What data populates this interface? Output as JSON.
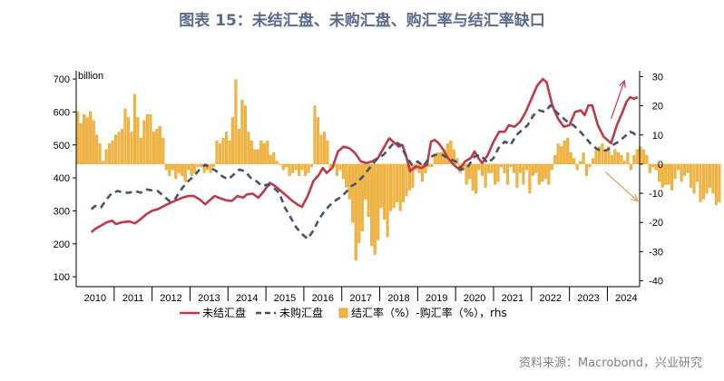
{
  "title": "图表 15：未结汇盘、未购汇盘、购汇率与结汇率缺口",
  "source": "资料来源：Macrobond，兴业研究",
  "colors": {
    "line1": "#c0394a",
    "line2": "#44546a",
    "bar": "#f2b441",
    "bar_edge": "#d99a1e",
    "arrow": "#c0394a",
    "arrow2": "#e69a4c"
  },
  "chart_data": {
    "type": "combo",
    "unit_label": "billion",
    "x_range": [
      2009.6,
      2024.45
    ],
    "x_ticks": [
      "2010",
      "2011",
      "2012",
      "2013",
      "2014",
      "2015",
      "2016",
      "2017",
      "2018",
      "2019",
      "2020",
      "2021",
      "2022",
      "2023",
      "2024"
    ],
    "y_left": {
      "range": [
        70,
        725
      ],
      "ticks": [
        100,
        200,
        300,
        400,
        500,
        600,
        700
      ]
    },
    "y_right": {
      "range": [
        -42,
        32
      ],
      "ticks": [
        -40,
        -30,
        -20,
        -10,
        0,
        10,
        20,
        30
      ]
    },
    "legend": [
      "未结汇盘",
      "未购汇盘",
      "结汇率（%）-购汇率（%），rhs"
    ],
    "series_lines": [
      {
        "name": "未结汇盘",
        "axis": "left",
        "style": "solid",
        "points": [
          [
            2010.0,
            235
          ],
          [
            2010.1,
            245
          ],
          [
            2010.25,
            255
          ],
          [
            2010.4,
            265
          ],
          [
            2010.55,
            270
          ],
          [
            2010.65,
            260
          ],
          [
            2010.8,
            265
          ],
          [
            2011.0,
            268
          ],
          [
            2011.15,
            262
          ],
          [
            2011.3,
            275
          ],
          [
            2011.45,
            290
          ],
          [
            2011.6,
            300
          ],
          [
            2011.75,
            305
          ],
          [
            2012.0,
            320
          ],
          [
            2012.2,
            330
          ],
          [
            2012.4,
            340
          ],
          [
            2012.55,
            345
          ],
          [
            2012.7,
            345
          ],
          [
            2012.85,
            335
          ],
          [
            2013.0,
            320
          ],
          [
            2013.1,
            330
          ],
          [
            2013.25,
            345
          ],
          [
            2013.4,
            338
          ],
          [
            2013.55,
            332
          ],
          [
            2013.7,
            330
          ],
          [
            2013.85,
            345
          ],
          [
            2014.0,
            340
          ],
          [
            2014.1,
            350
          ],
          [
            2014.25,
            352
          ],
          [
            2014.4,
            340
          ],
          [
            2014.55,
            360
          ],
          [
            2014.7,
            385
          ],
          [
            2014.85,
            375
          ],
          [
            2015.0,
            360
          ],
          [
            2015.15,
            345
          ],
          [
            2015.3,
            330
          ],
          [
            2015.45,
            318
          ],
          [
            2015.55,
            312
          ],
          [
            2015.7,
            345
          ],
          [
            2015.85,
            390
          ],
          [
            2016.0,
            410
          ],
          [
            2016.1,
            430
          ],
          [
            2016.2,
            415
          ],
          [
            2016.35,
            430
          ],
          [
            2016.5,
            480
          ],
          [
            2016.65,
            495
          ],
          [
            2016.8,
            490
          ],
          [
            2016.95,
            475
          ],
          [
            2017.1,
            450
          ],
          [
            2017.25,
            445
          ],
          [
            2017.4,
            450
          ],
          [
            2017.55,
            460
          ],
          [
            2017.7,
            490
          ],
          [
            2017.85,
            520
          ],
          [
            2018.0,
            505
          ],
          [
            2018.1,
            495
          ],
          [
            2018.2,
            500
          ],
          [
            2018.3,
            465
          ],
          [
            2018.4,
            420
          ],
          [
            2018.55,
            435
          ],
          [
            2018.7,
            430
          ],
          [
            2018.85,
            440
          ],
          [
            2018.95,
            510
          ],
          [
            2019.05,
            515
          ],
          [
            2019.15,
            505
          ],
          [
            2019.25,
            490
          ],
          [
            2019.4,
            460
          ],
          [
            2019.55,
            440
          ],
          [
            2019.7,
            425
          ],
          [
            2019.85,
            450
          ],
          [
            2020.0,
            460
          ],
          [
            2020.1,
            480
          ],
          [
            2020.2,
            460
          ],
          [
            2020.3,
            445
          ],
          [
            2020.45,
            470
          ],
          [
            2020.6,
            510
          ],
          [
            2020.75,
            540
          ],
          [
            2020.9,
            540
          ],
          [
            2021.0,
            560
          ],
          [
            2021.15,
            555
          ],
          [
            2021.3,
            570
          ],
          [
            2021.45,
            600
          ],
          [
            2021.6,
            640
          ],
          [
            2021.75,
            680
          ],
          [
            2021.9,
            700
          ],
          [
            2022.0,
            690
          ],
          [
            2022.15,
            620
          ],
          [
            2022.3,
            580
          ],
          [
            2022.45,
            555
          ],
          [
            2022.6,
            560
          ],
          [
            2022.75,
            600
          ],
          [
            2022.9,
            605
          ],
          [
            2023.0,
            590
          ],
          [
            2023.1,
            620
          ],
          [
            2023.2,
            620
          ],
          [
            2023.35,
            560
          ],
          [
            2023.5,
            525
          ],
          [
            2023.7,
            505
          ],
          [
            2023.85,
            560
          ],
          [
            2024.0,
            600
          ],
          [
            2024.1,
            630
          ],
          [
            2024.2,
            645
          ],
          [
            2024.3,
            640
          ],
          [
            2024.4,
            645
          ]
        ]
      },
      {
        "name": "未购汇盘",
        "axis": "left",
        "style": "dashed",
        "points": [
          [
            2010.0,
            305
          ],
          [
            2010.1,
            315
          ],
          [
            2010.25,
            310
          ],
          [
            2010.4,
            335
          ],
          [
            2010.55,
            355
          ],
          [
            2010.7,
            360
          ],
          [
            2010.85,
            355
          ],
          [
            2011.0,
            355
          ],
          [
            2011.15,
            360
          ],
          [
            2011.3,
            355
          ],
          [
            2011.45,
            365
          ],
          [
            2011.6,
            362
          ],
          [
            2011.75,
            360
          ],
          [
            2011.9,
            345
          ],
          [
            2012.05,
            330
          ],
          [
            2012.2,
            335
          ],
          [
            2012.4,
            370
          ],
          [
            2012.55,
            390
          ],
          [
            2012.7,
            405
          ],
          [
            2012.85,
            425
          ],
          [
            2013.0,
            440
          ],
          [
            2013.15,
            430
          ],
          [
            2013.3,
            420
          ],
          [
            2013.45,
            405
          ],
          [
            2013.6,
            395
          ],
          [
            2013.75,
            410
          ],
          [
            2013.9,
            425
          ],
          [
            2014.05,
            420
          ],
          [
            2014.2,
            400
          ],
          [
            2014.35,
            390
          ],
          [
            2014.5,
            375
          ],
          [
            2014.65,
            380
          ],
          [
            2014.8,
            370
          ],
          [
            2014.95,
            355
          ],
          [
            2015.1,
            310
          ],
          [
            2015.25,
            280
          ],
          [
            2015.4,
            250
          ],
          [
            2015.55,
            230
          ],
          [
            2015.7,
            215
          ],
          [
            2015.85,
            240
          ],
          [
            2016.0,
            275
          ],
          [
            2016.15,
            300
          ],
          [
            2016.35,
            325
          ],
          [
            2016.55,
            340
          ],
          [
            2016.7,
            355
          ],
          [
            2016.85,
            375
          ],
          [
            2017.0,
            385
          ],
          [
            2017.2,
            410
          ],
          [
            2017.4,
            440
          ],
          [
            2017.55,
            460
          ],
          [
            2017.7,
            470
          ],
          [
            2017.85,
            490
          ],
          [
            2018.0,
            510
          ],
          [
            2018.15,
            500
          ],
          [
            2018.3,
            465
          ],
          [
            2018.45,
            440
          ],
          [
            2018.6,
            450
          ],
          [
            2018.75,
            435
          ],
          [
            2018.9,
            460
          ],
          [
            2019.05,
            470
          ],
          [
            2019.25,
            470
          ],
          [
            2019.4,
            460
          ],
          [
            2019.6,
            450
          ],
          [
            2019.75,
            425
          ],
          [
            2019.9,
            430
          ],
          [
            2020.1,
            465
          ],
          [
            2020.25,
            470
          ],
          [
            2020.45,
            445
          ],
          [
            2020.6,
            460
          ],
          [
            2020.75,
            495
          ],
          [
            2020.9,
            510
          ],
          [
            2021.05,
            500
          ],
          [
            2021.2,
            530
          ],
          [
            2021.35,
            545
          ],
          [
            2021.5,
            560
          ],
          [
            2021.65,
            590
          ],
          [
            2021.8,
            605
          ],
          [
            2021.95,
            600
          ],
          [
            2022.1,
            620
          ],
          [
            2022.25,
            600
          ],
          [
            2022.4,
            585
          ],
          [
            2022.55,
            570
          ],
          [
            2022.7,
            560
          ],
          [
            2022.85,
            545
          ],
          [
            2023.0,
            525
          ],
          [
            2023.15,
            505
          ],
          [
            2023.3,
            490
          ],
          [
            2023.45,
            480
          ],
          [
            2023.6,
            485
          ],
          [
            2023.75,
            500
          ],
          [
            2023.9,
            510
          ],
          [
            2024.05,
            525
          ],
          [
            2024.2,
            540
          ],
          [
            2024.3,
            535
          ],
          [
            2024.4,
            520
          ]
        ]
      }
    ],
    "series_bars": {
      "name": "结汇率（%）-购汇率（%），rhs",
      "axis": "right",
      "x_start": 2009.6,
      "step": 0.0833,
      "values": [
        18,
        14,
        17,
        16,
        18,
        15,
        10,
        7,
        1,
        5,
        7,
        8,
        10,
        11,
        12,
        19,
        16,
        11,
        24,
        16,
        9,
        15,
        17,
        17,
        11,
        12,
        13,
        9,
        -2,
        -4,
        -2,
        -5,
        -3,
        -4,
        -6,
        -2,
        -4,
        -3,
        -1,
        -1,
        -3,
        -2,
        -3,
        -1,
        8,
        7,
        9,
        11,
        8,
        16,
        29,
        12,
        22,
        20,
        11,
        8,
        5,
        5,
        8,
        7,
        8,
        3,
        4,
        1,
        0,
        -2,
        -1,
        -4,
        -3,
        -2,
        -4,
        -2,
        -4,
        -3,
        -1,
        20,
        16,
        10,
        11,
        8,
        -2,
        -1,
        -4,
        -2,
        -5,
        -8,
        -12,
        -20,
        -33,
        -27,
        -23,
        -12,
        -18,
        -28,
        -31,
        -26,
        -15,
        -19,
        -25,
        -16,
        -15,
        -13,
        -16,
        -13,
        -11,
        -9,
        -8,
        -2,
        -3,
        -6,
        -3,
        -1,
        -1,
        3,
        4,
        4,
        5,
        7,
        8,
        5,
        2,
        -3,
        -2,
        -7,
        -5,
        -9,
        -10,
        -2,
        -4,
        -8,
        -3,
        -3,
        -7,
        -6,
        -1,
        -3,
        -7,
        -1,
        -3,
        -8,
        -3,
        -7,
        -2,
        -10,
        -4,
        -3,
        -7,
        -6,
        -5,
        -7,
        -2,
        3,
        7,
        6,
        8,
        9,
        4,
        2,
        -2,
        1,
        4,
        -4,
        -1,
        2,
        5,
        6,
        7,
        5,
        6,
        3,
        5,
        4,
        3,
        1,
        4,
        -2,
        3,
        5,
        6,
        5,
        3,
        -3,
        -1,
        -2,
        -6,
        -8,
        -7,
        -7,
        -9,
        -5,
        -2,
        -6,
        -4,
        -3,
        -8,
        -10,
        -6,
        -13,
        -12,
        -10,
        -8,
        -10,
        -14,
        -13
      ]
    },
    "annotations": [
      {
        "type": "arrow",
        "from": [
          2023.7,
          580
        ],
        "to": [
          2024.05,
          695
        ],
        "axis": "left",
        "color_key": "arrow"
      },
      {
        "type": "arrow",
        "from": [
          2023.55,
          418
        ],
        "to": [
          2024.4,
          330
        ],
        "axis": "left",
        "color_key": "arrow2"
      }
    ]
  }
}
